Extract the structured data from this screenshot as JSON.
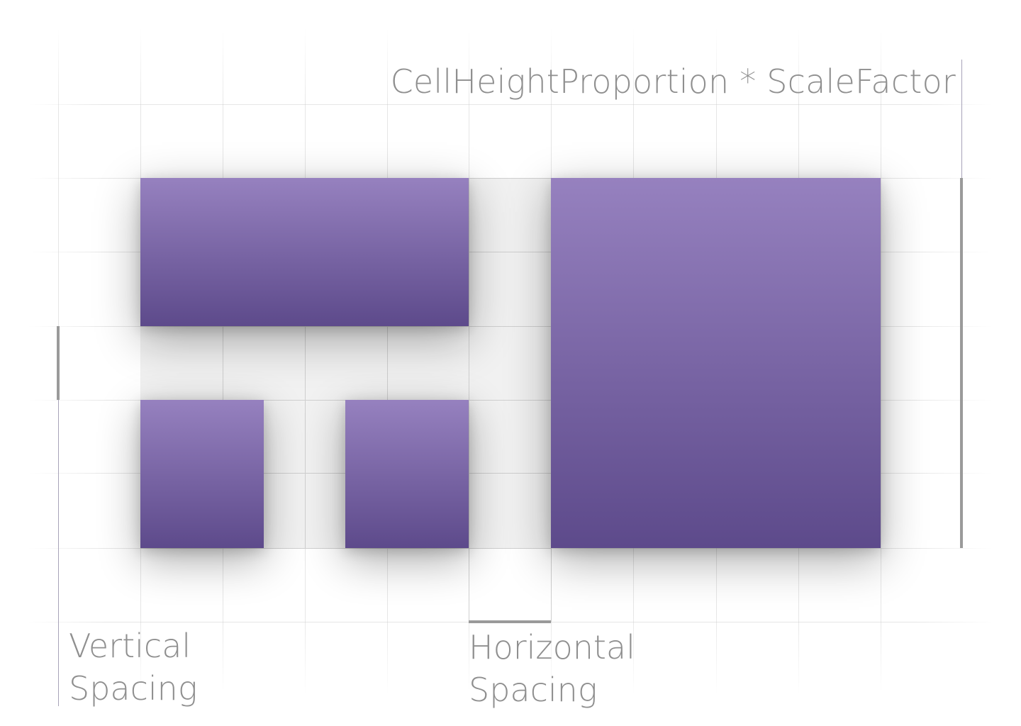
{
  "labels": {
    "top": "CellHeightProportion * ScaleFactor",
    "vertical_line1": "Vertical",
    "vertical_line2": "Spacing",
    "horizontal_line1": "Horizontal",
    "horizontal_line2": "Spacing"
  },
  "colors": {
    "tile_top": "#9681bf",
    "tile_bottom": "#5d4a8b",
    "grid_line": "#cfcfcf",
    "marker": "#9a9a9a",
    "label_text": "#8f8f8f",
    "background": "#ffffff"
  }
}
